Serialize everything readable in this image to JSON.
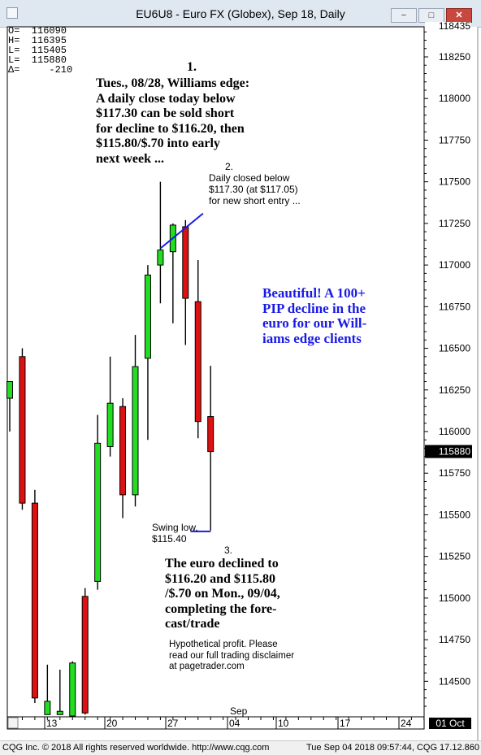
{
  "window": {
    "title": "EU6U8 - Euro FX (Globex), Sep 18, Daily",
    "buttons": {
      "minimize": "−",
      "maximize": "□",
      "close": "✕"
    }
  },
  "ohlc_readout": {
    "o": "O=  116090",
    "h": "H=  116395",
    "l": "L=  115405",
    "c": "L=  115880",
    "d": "Δ=     -210"
  },
  "annotations": {
    "n1": "1.",
    "text1": [
      "Tues., 08/28, Williams edge:",
      "A daily close today below",
      "$117.30 can be sold short",
      "for decline to $116.20, then",
      "$115.80/$.70 into early",
      "next week ..."
    ],
    "n2": "2.",
    "text2": [
      "Daily closed below",
      "$117.30 (at $117.05)",
      "for new short entry ..."
    ],
    "blue": [
      "Beautiful!  A 100+",
      "PIP decline in the",
      "euro for our Will-",
      "iams edge clients"
    ],
    "swing": [
      "Swing low,",
      "$115.40"
    ],
    "n3": "3.",
    "text3": [
      "The euro declined to",
      "$116.20 and $115.80",
      "/$.70 on Mon., 09/04,",
      "completing the fore-",
      "cast/trade"
    ],
    "disclaimer": [
      "Hypothetical profit. Please",
      "read our full trading disclaimer",
      "at pagetrader.com"
    ]
  },
  "colors": {
    "up": "#22dd22",
    "down": "#dd1111",
    "trendline": "#1a1ae6"
  },
  "chart_data": {
    "type": "candlestick",
    "ylim": [
      114300,
      118450
    ],
    "y_ticks": [
      118250,
      118000,
      117750,
      117500,
      117250,
      117000,
      116750,
      116500,
      116250,
      116000,
      115750,
      115500,
      115250,
      115000,
      114750,
      114500
    ],
    "last_price_label": "115880",
    "top_price_label": "118435",
    "x_tick_labels": [
      "13",
      "20",
      "27",
      "04",
      "10",
      "17",
      "24"
    ],
    "month_label": "Sep",
    "date_box": "01 Oct",
    "candles": [
      {
        "open": 116200,
        "high": 116300,
        "low": 116000,
        "close": 116300
      },
      {
        "open": 116450,
        "high": 116500,
        "low": 115530,
        "close": 115570
      },
      {
        "open": 115570,
        "high": 115650,
        "low": 114370,
        "close": 114400
      },
      {
        "open": 114300,
        "high": 114600,
        "low": 114300,
        "close": 114380
      },
      {
        "open": 114300,
        "high": 114570,
        "low": 114300,
        "close": 114320
      },
      {
        "open": 114280,
        "high": 114620,
        "low": 114280,
        "close": 114610
      },
      {
        "open": 115010,
        "high": 115060,
        "low": 114300,
        "close": 114310
      },
      {
        "open": 115100,
        "high": 116100,
        "low": 115050,
        "close": 115930
      },
      {
        "open": 115910,
        "high": 116450,
        "low": 115850,
        "close": 116170
      },
      {
        "open": 116150,
        "high": 116200,
        "low": 115480,
        "close": 115620
      },
      {
        "open": 115620,
        "high": 116580,
        "low": 115550,
        "close": 116390
      },
      {
        "open": 116440,
        "high": 117000,
        "low": 115950,
        "close": 116940
      },
      {
        "open": 117000,
        "high": 117500,
        "low": 116770,
        "close": 117090
      },
      {
        "open": 117080,
        "high": 117250,
        "low": 116650,
        "close": 117240
      },
      {
        "open": 117230,
        "high": 117270,
        "low": 116520,
        "close": 116800
      },
      {
        "open": 116780,
        "high": 117030,
        "low": 115960,
        "close": 116060
      },
      {
        "open": 116090,
        "high": 116395,
        "low": 115405,
        "close": 115880
      }
    ],
    "trendline": {
      "from": [
        12,
        117100
      ],
      "to": [
        15.4,
        117310
      ]
    },
    "swing_low_line": {
      "x_from": 14.4,
      "x_to": 16,
      "value": 115400
    }
  }
}
